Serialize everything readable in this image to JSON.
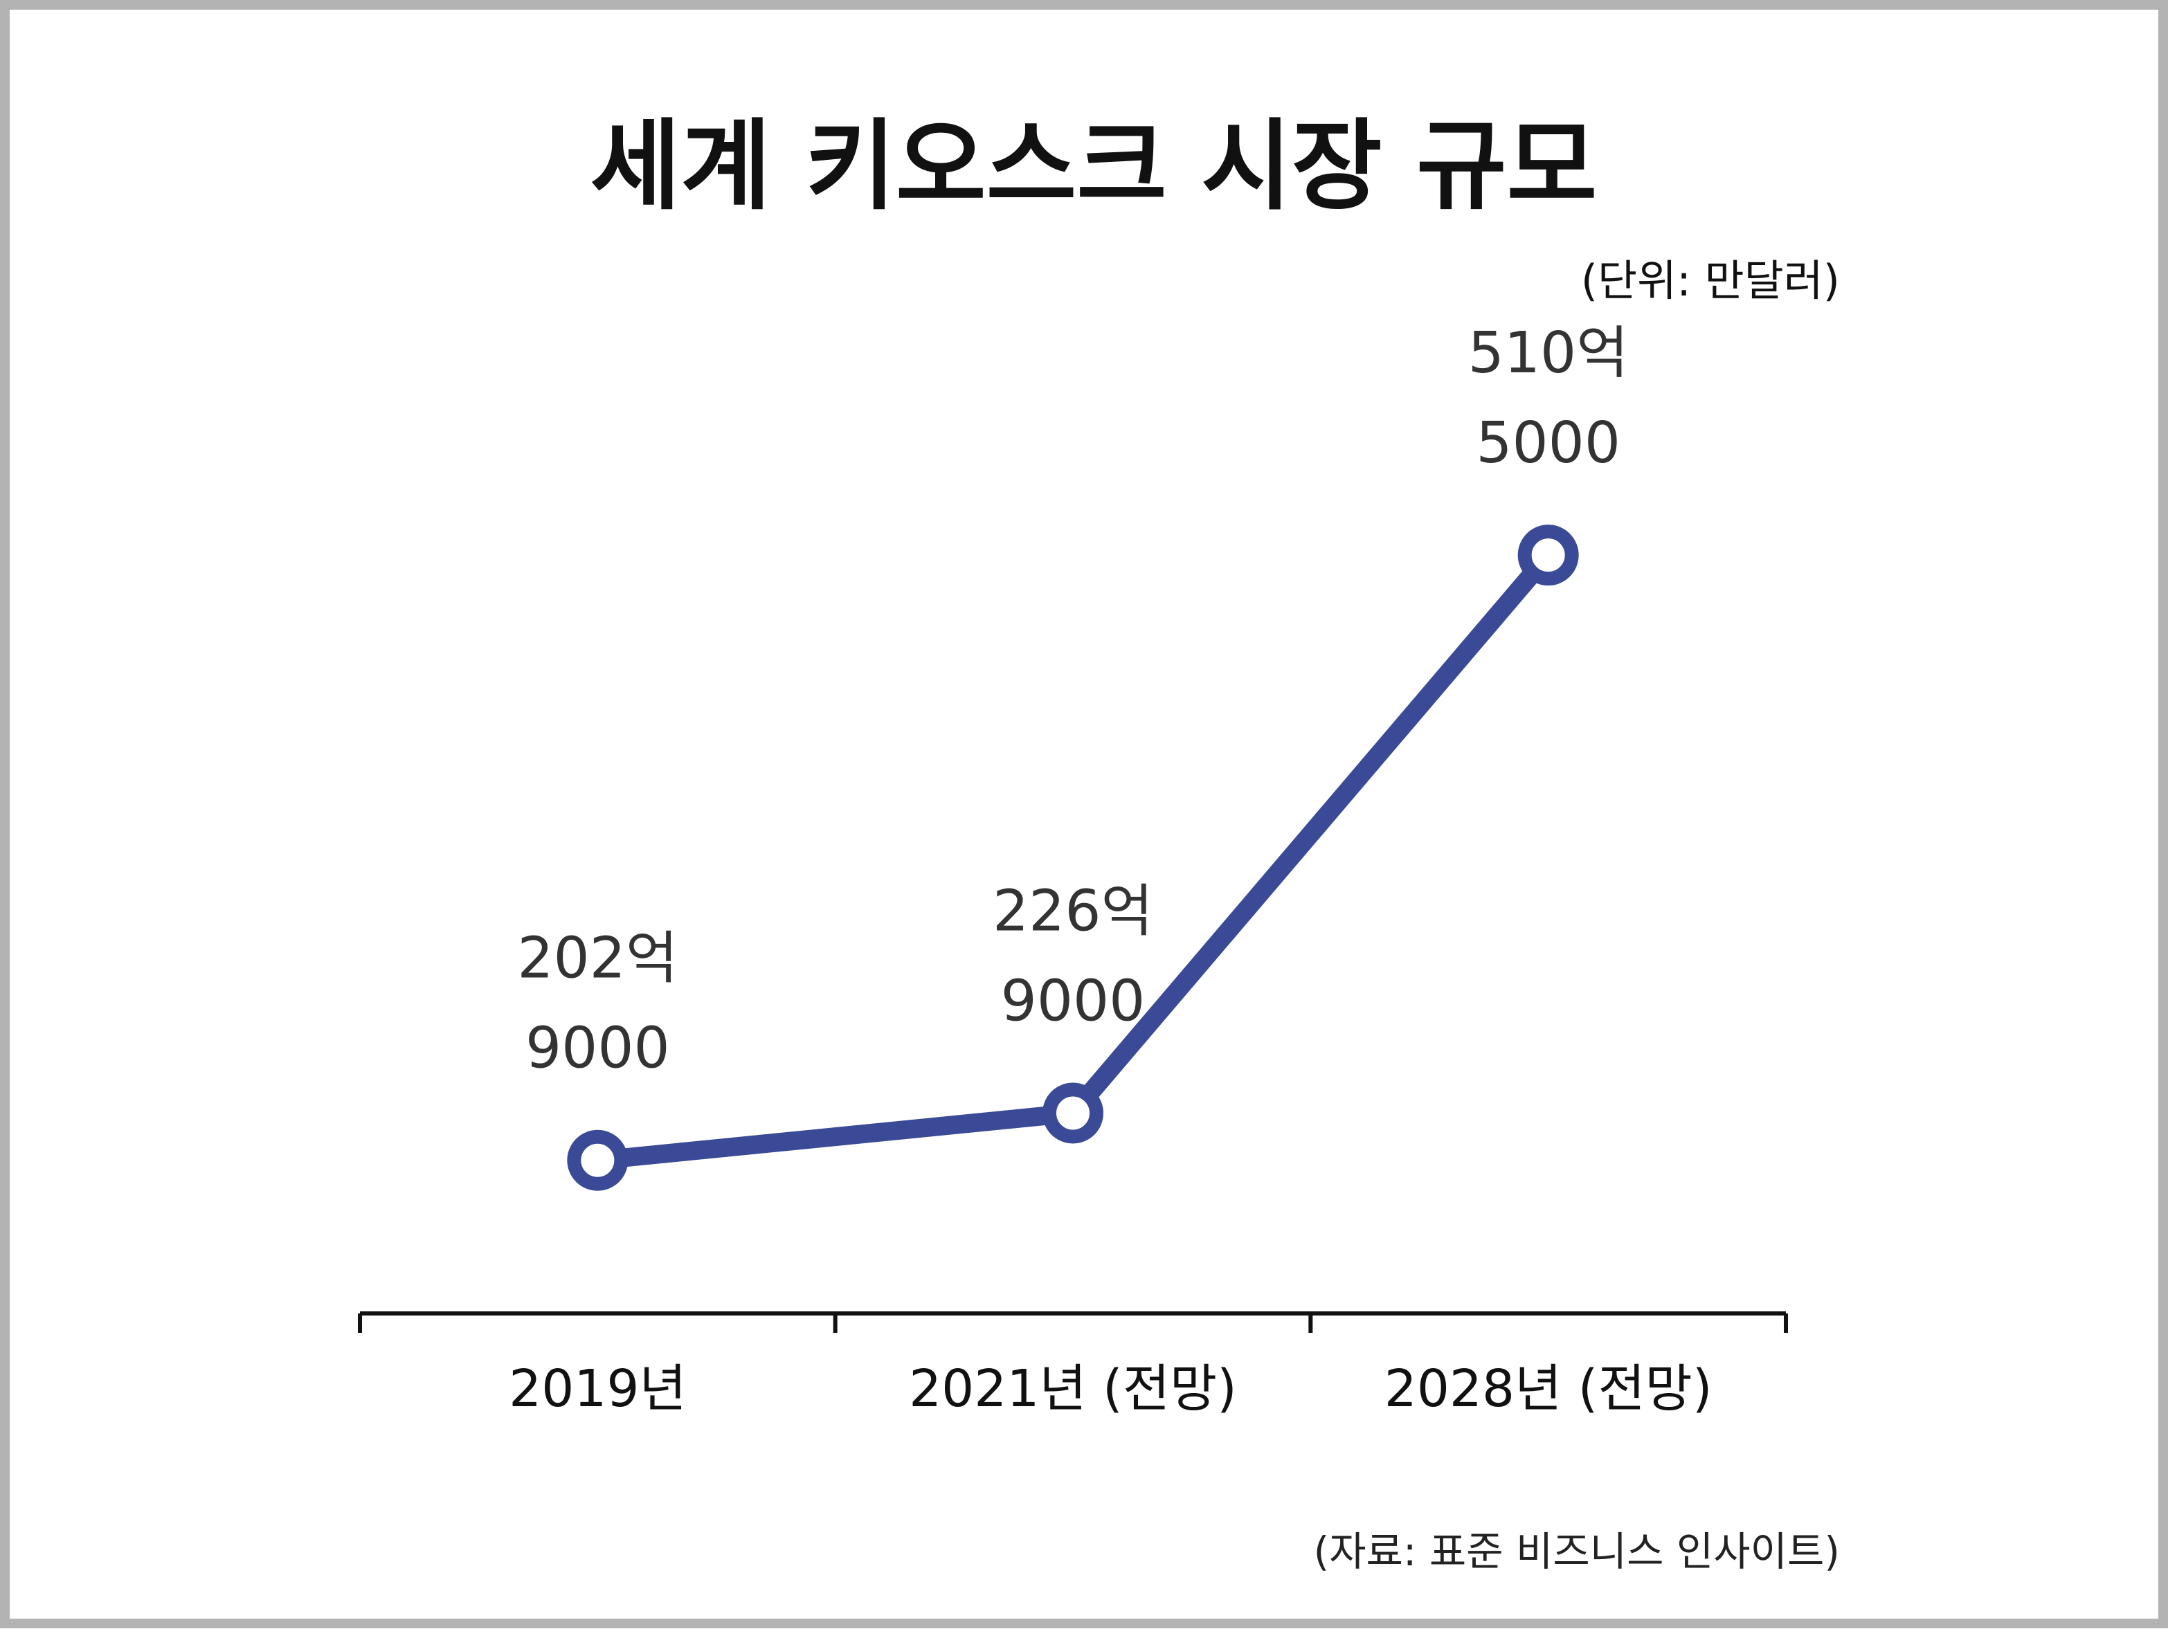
{
  "chart_data": {
    "type": "line",
    "title": "세계 키오스크 시장 규모",
    "unit_label": "(단위: 만달러)",
    "source": "(자료: 표준 비즈니스 인사이트)",
    "categories": [
      "2019년",
      "2021년 (전망)",
      "2028년 (전망)"
    ],
    "values": [
      2029000,
      2269000,
      5105000
    ],
    "data_labels": [
      [
        "202억",
        "9000"
      ],
      [
        "226억",
        "9000"
      ],
      [
        "510억",
        "5000"
      ]
    ],
    "ylim": [
      1300000,
      6400000
    ],
    "grid": false,
    "legend": "none",
    "line_color": "#3a4a96",
    "marker_fill": "#ffffff"
  }
}
